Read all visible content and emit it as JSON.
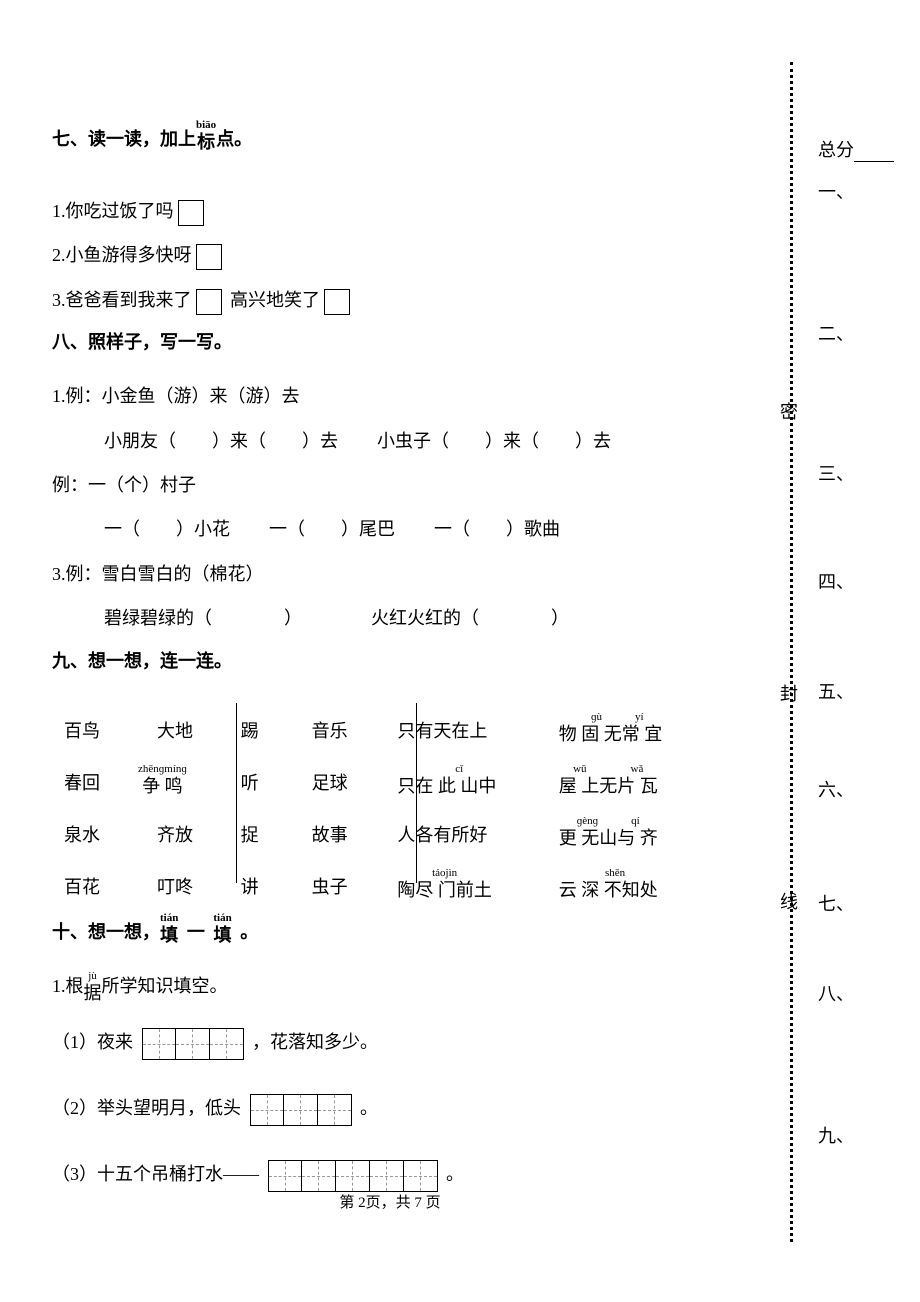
{
  "sections": {
    "seven": {
      "title_pre": "七、读一读，加上",
      "title_pinyin": "biāo",
      "title_char": "标",
      "title_post": "点。",
      "q1": "1.你吃过饭了吗",
      "q2": "2.小鱼游得多快呀",
      "q3a": "3.爸爸看到我来了",
      "q3b": "高兴地笑了"
    },
    "eight": {
      "title": "八、照样子，写一写。",
      "q1_ex": "1.例：小金鱼（游）来（游）去",
      "q1_a": "小朋友（　　）来（　　）去",
      "q1_b": "小虫子（　　）来（　　）去",
      "q2_ex": "例：一（个）村子",
      "q2_a": "一（　　）小花",
      "q2_b": "一（　　）尾巴",
      "q2_c": "一（　　）歌曲",
      "q3_ex": "3.例：雪白雪白的（棉花）",
      "q3_a": "碧绿碧绿的（　　　　）",
      "q3_b": "火红火红的（　　　　）"
    },
    "nine": {
      "title": "九、想一想，连一连。",
      "rows": [
        {
          "a1": "百鸟",
          "a2": "大地",
          "a2p": "",
          "b1": "踢",
          "b2": "音乐",
          "c": "只有天在上",
          "cp": "",
          "d": "物 固 无常 宜",
          "dp": "　 ɡù　　　yí"
        },
        {
          "a1": "春回",
          "a2": "争 鸣",
          "a2p": "zhēnɡmínɡ",
          "b1": "听",
          "b2": "足球",
          "c": "只在 此 山中",
          "cp": "　　 cǐ",
          "d": "屋 上无片 瓦",
          "dp": "wū　　　　wǎ"
        },
        {
          "a1": "泉水",
          "a2": "齐放",
          "a2p": "",
          "b1": "捉",
          "b2": "故事",
          "c": "人各有所好",
          "cp": "",
          "d": "更 无山与 齐",
          "dp": "ɡènɡ　　　qí"
        },
        {
          "a1": "百花",
          "a2": "叮咚",
          "a2p": "",
          "b1": "讲",
          "b2": "虫子",
          "c": "陶尽 门前土",
          "cp": "táojìn",
          "d": "云 深 不知处",
          "dp": "　 shēn"
        }
      ]
    },
    "ten": {
      "title_pre": "十、想一想，",
      "title_p1": "tián",
      "title_c1": "填",
      "title_p2": "tián",
      "title_c2": "填",
      "title_mid": "一",
      "title_post": "。",
      "sub1_pre": "1.根",
      "sub1_p": "jù",
      "sub1_c": "据",
      "sub1_post": "所学知识填空。",
      "q1a": "（1）夜来",
      "q1b": "，花落知多少。",
      "q2a": "（2）举头望明月，低头",
      "q2b": "。",
      "q3a": "（3）十五个吊桶打水——",
      "q3b": "。"
    }
  },
  "footer": "第 2页，共 7 页",
  "side": {
    "score": "总分",
    "labels": [
      "一、",
      "二、",
      "三、",
      "四、",
      "五、",
      "六、",
      "七、",
      "八、",
      "九、"
    ],
    "seal": [
      "密",
      "封",
      "线"
    ]
  }
}
